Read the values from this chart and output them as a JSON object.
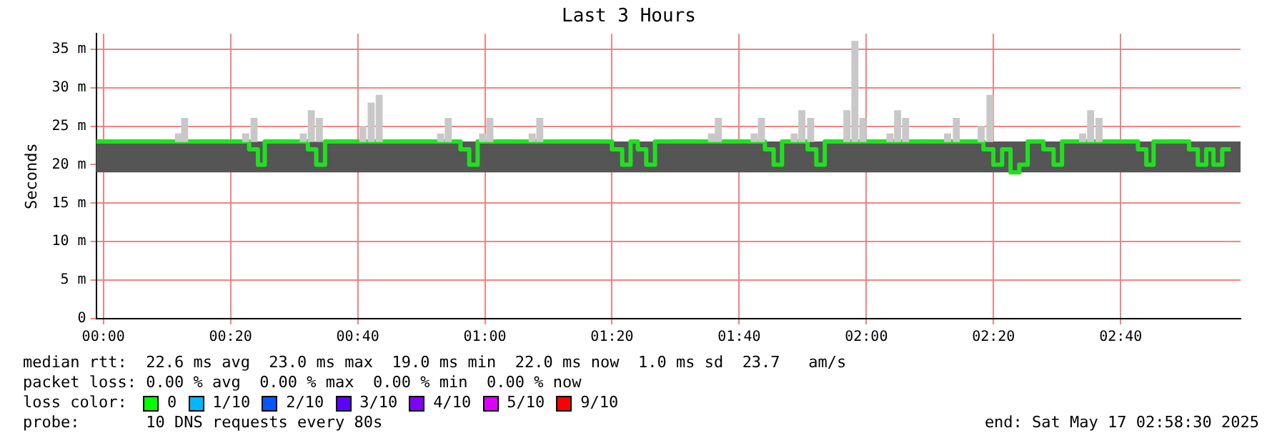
{
  "chart_data": {
    "type": "step",
    "title": "Last 3 Hours",
    "ylabel": "Seconds",
    "xlim": [
      -0.019,
      2.981
    ],
    "xticks": [
      {
        "value": 0,
        "label": "00:00"
      },
      {
        "value": 0.3333,
        "label": "00:20"
      },
      {
        "value": 0.6667,
        "label": "00:40"
      },
      {
        "value": 1,
        "label": "01:00"
      },
      {
        "value": 1.3333,
        "label": "01:20"
      },
      {
        "value": 1.6667,
        "label": "01:40"
      },
      {
        "value": 2,
        "label": "02:00"
      },
      {
        "value": 2.3333,
        "label": "02:20"
      },
      {
        "value": 2.6667,
        "label": "02:40"
      }
    ],
    "ylim": [
      0,
      37
    ],
    "yticks": [
      0,
      {
        "value": 5,
        "label": "5 m"
      },
      {
        "value": 10,
        "label": "10 m"
      },
      {
        "value": 15,
        "label": "15 m"
      },
      {
        "value": 20,
        "label": "20 m"
      },
      {
        "value": 25,
        "label": "25 m"
      },
      {
        "value": 30,
        "label": "30 m"
      },
      {
        "value": 35,
        "label": "35 m"
      }
    ],
    "grid": true,
    "legend": false,
    "bands": [
      {
        "axis": "y",
        "from": 19,
        "to": 23,
        "color": "#555555"
      }
    ],
    "series": [
      {
        "type": "bar",
        "color": "#c8c8c8",
        "x": [
          0.197,
          0.213,
          0.373,
          0.395,
          0.524,
          0.545,
          0.566,
          0.68,
          0.702,
          0.723,
          0.884,
          0.904,
          0.994,
          1.013,
          1.124,
          1.144,
          1.594,
          1.612,
          1.706,
          1.725,
          1.811,
          1.831,
          1.854,
          1.949,
          1.97,
          1.991,
          2.062,
          2.082,
          2.103,
          2.213,
          2.236,
          2.301,
          2.324,
          2.567,
          2.588,
          2.61
        ],
        "base": [
          23,
          23,
          23,
          23,
          23,
          23,
          23,
          23,
          23,
          23,
          23,
          23,
          23,
          23,
          23,
          23,
          23,
          23,
          23,
          23,
          23,
          23,
          23,
          23,
          23,
          23,
          23,
          23,
          23,
          23,
          23,
          23,
          23,
          23,
          23,
          23
        ],
        "values": [
          1,
          3,
          1,
          3,
          1,
          4,
          3,
          2,
          5,
          6,
          1,
          3,
          1,
          3,
          1,
          3,
          1,
          3,
          1,
          3,
          1,
          4,
          3,
          4,
          13,
          3,
          1,
          4,
          3,
          1,
          3,
          2,
          6,
          1,
          4,
          3
        ]
      },
      {
        "color": "#20e020",
        "x": [
          -0.019,
          0.382,
          0.405,
          0.423,
          0.536,
          0.558,
          0.581,
          0.936,
          0.959,
          0.981,
          1.333,
          1.36,
          1.382,
          1.401,
          1.423,
          1.446,
          1.734,
          1.757,
          1.779,
          1.846,
          1.869,
          1.891,
          2.307,
          2.333,
          2.356,
          2.378,
          2.401,
          2.423,
          2.464,
          2.491,
          2.513,
          2.712,
          2.734,
          2.753,
          2.846,
          2.869,
          2.891,
          2.91,
          2.933,
          2.955
        ],
        "values": [
          23,
          22,
          20,
          23,
          22,
          20,
          23,
          22,
          20,
          23,
          22,
          20,
          23,
          22,
          20,
          23,
          22,
          20,
          23,
          22,
          20,
          23,
          22,
          20,
          22,
          19,
          20,
          23,
          22,
          20,
          23,
          22,
          20,
          23,
          22,
          20,
          22,
          20,
          22,
          22
        ]
      }
    ],
    "annotations": [
      "median rtt:  22.6 ms avg  23.0 ms max  19.0 ms min  22.0 ms now  1.0 ms sd  23.7   am/s",
      "packet loss: 0.00 % avg  0.00 % max  0.00 % min  0.00 % now",
      "loss color:",
      "0",
      "1/10",
      "2/10",
      "3/10",
      "4/10",
      "5/10",
      "9/10",
      "probe:       10 DNS requests every 80s",
      "end: Sat May 17 02:58:30 2025"
    ]
  }
}
